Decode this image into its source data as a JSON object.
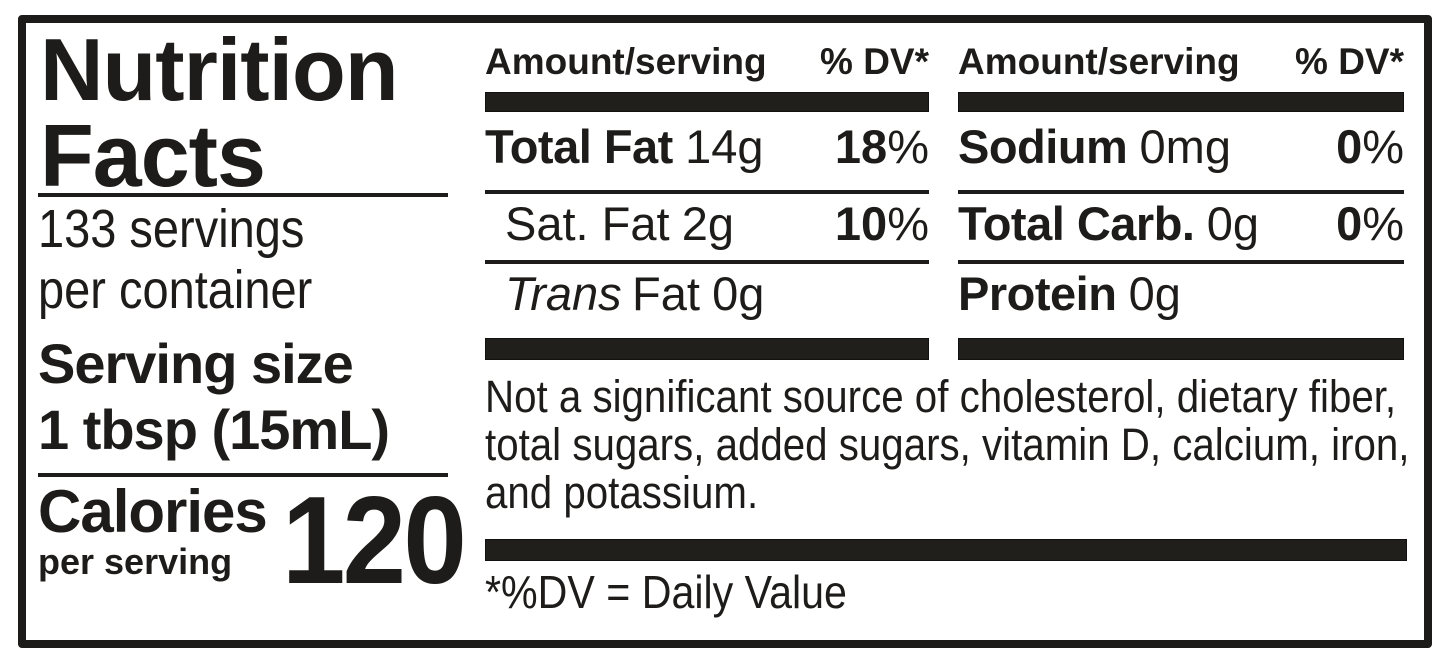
{
  "colors": {
    "ink": "#1d1c1a",
    "background": "#ffffff"
  },
  "left_panel": {
    "title_line1": "Nutrition",
    "title_line2": "Facts",
    "servings_line1": "133 servings",
    "servings_line2": "per container",
    "serving_size_label": "Serving size",
    "serving_size_value": "1 tbsp (15mL)",
    "calories_label": "Calories",
    "calories_sublabel": "per serving",
    "calories_value": "120"
  },
  "nutrient_columns": [
    {
      "header_amount": "Amount/serving",
      "header_dv": "% DV*",
      "rows": [
        {
          "name": "Total Fat",
          "amount": "14g",
          "dv": "18",
          "dv_unit": "%"
        },
        {
          "name": "Sat. Fat",
          "amount": "2g",
          "dv": "10",
          "dv_unit": "%"
        },
        {
          "name_italic": "Trans",
          "name_rest": "Fat",
          "amount": "0g"
        }
      ]
    },
    {
      "header_amount": "Amount/serving",
      "header_dv": "% DV*",
      "rows": [
        {
          "name": "Sodium",
          "amount": "0mg",
          "dv": "0",
          "dv_unit": "%"
        },
        {
          "name": "Total Carb.",
          "amount": "0g",
          "dv": "0",
          "dv_unit": "%"
        },
        {
          "name": "Protein",
          "amount": "0g"
        }
      ]
    }
  ],
  "footnotes": {
    "not_significant_source": "Not a significant source of cholesterol, dietary fiber, total sugars, added sugars, vitamin D, calcium, iron, and potassium.",
    "dv_definition": "*%DV = Daily Value"
  }
}
